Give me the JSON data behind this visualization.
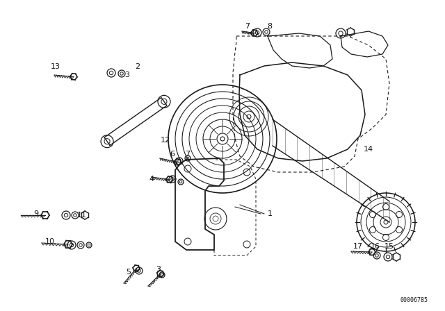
{
  "bg_color": "#ffffff",
  "line_color": "#1a1a1a",
  "label_color": "#111111",
  "diagram_id": "00006785",
  "fig_width": 6.4,
  "fig_height": 4.48,
  "dpi": 100,
  "label_positions": [
    [
      "1",
      388,
      308
    ],
    [
      "2",
      198,
      96
    ],
    [
      "3",
      183,
      108
    ],
    [
      "3",
      228,
      388
    ],
    [
      "4",
      218,
      258
    ],
    [
      "5",
      185,
      392
    ],
    [
      "6",
      248,
      222
    ],
    [
      "7",
      270,
      222
    ],
    [
      "7",
      356,
      38
    ],
    [
      "8",
      388,
      38
    ],
    [
      "9",
      52,
      308
    ],
    [
      "10",
      72,
      348
    ],
    [
      "11",
      118,
      310
    ],
    [
      "12",
      238,
      202
    ],
    [
      "13",
      80,
      96
    ],
    [
      "14",
      530,
      215
    ],
    [
      "15",
      560,
      355
    ],
    [
      "16",
      540,
      355
    ],
    [
      "17",
      515,
      355
    ]
  ]
}
